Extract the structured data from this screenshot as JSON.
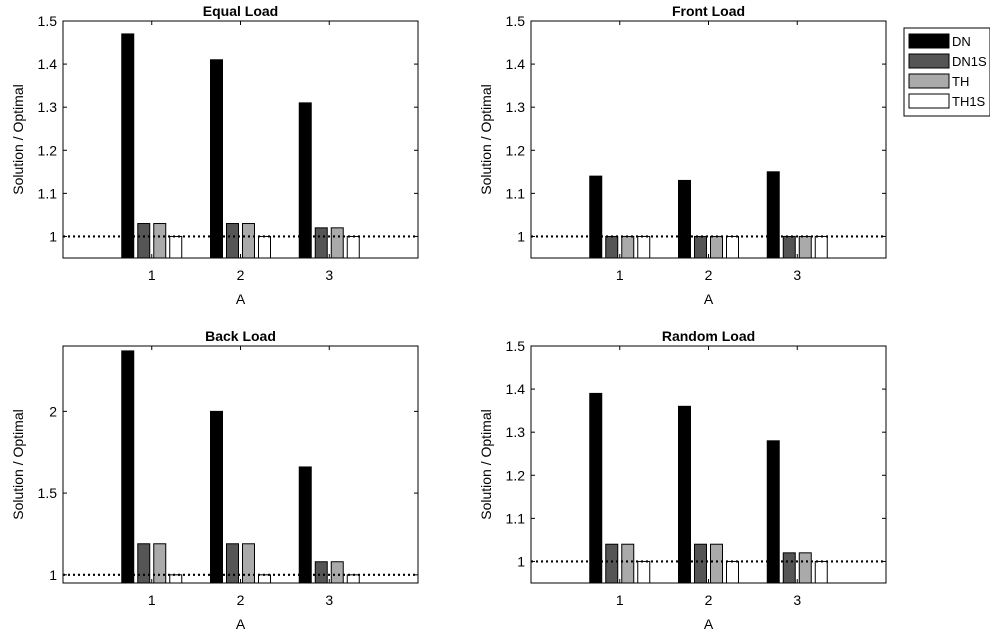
{
  "legend": {
    "entries": [
      "DN",
      "DN1S",
      "TH",
      "TH1S"
    ],
    "placement": "top-right outside",
    "colors": [
      "#000000",
      "#555555",
      "#aaaaaa",
      "#ffffff"
    ]
  },
  "chart_data": [
    {
      "type": "bar",
      "title": "Equal Load",
      "xlabel": "A",
      "ylabel": "Solution / Optimal",
      "categories": [
        "1",
        "2",
        "3"
      ],
      "ylim": [
        0.95,
        1.5
      ],
      "yticks": [
        1,
        1.1,
        1.2,
        1.3,
        1.4,
        1.5
      ],
      "ytick_labels": [
        "1",
        "1.1",
        "1.2",
        "1.3",
        "1.4",
        "1.5"
      ],
      "reference_line": 1,
      "series": [
        {
          "name": "DN",
          "values": [
            1.47,
            1.41,
            1.31
          ]
        },
        {
          "name": "DN1S",
          "values": [
            1.03,
            1.03,
            1.02
          ]
        },
        {
          "name": "TH",
          "values": [
            1.03,
            1.03,
            1.02
          ]
        },
        {
          "name": "TH1S",
          "values": [
            1.0,
            1.0,
            1.0
          ]
        }
      ]
    },
    {
      "type": "bar",
      "title": "Front Load",
      "xlabel": "A",
      "ylabel": "Solution / Optimal",
      "categories": [
        "1",
        "2",
        "3"
      ],
      "ylim": [
        0.95,
        1.5
      ],
      "yticks": [
        1,
        1.1,
        1.2,
        1.3,
        1.4,
        1.5
      ],
      "ytick_labels": [
        "1",
        "1.1",
        "1.2",
        "1.3",
        "1.4",
        "1.5"
      ],
      "reference_line": 1,
      "series": [
        {
          "name": "DN",
          "values": [
            1.14,
            1.13,
            1.15
          ]
        },
        {
          "name": "DN1S",
          "values": [
            1.0,
            1.0,
            1.0
          ]
        },
        {
          "name": "TH",
          "values": [
            1.0,
            1.0,
            1.0
          ]
        },
        {
          "name": "TH1S",
          "values": [
            1.0,
            1.0,
            1.0
          ]
        }
      ]
    },
    {
      "type": "bar",
      "title": "Back Load",
      "xlabel": "A",
      "ylabel": "Solution / Optimal",
      "categories": [
        "1",
        "2",
        "3"
      ],
      "ylim": [
        0.95,
        2.4
      ],
      "yticks": [
        1,
        1.5,
        2
      ],
      "ytick_labels": [
        "1",
        "1.5",
        "2"
      ],
      "reference_line": 1,
      "series": [
        {
          "name": "DN",
          "values": [
            2.37,
            2.0,
            1.66
          ]
        },
        {
          "name": "DN1S",
          "values": [
            1.19,
            1.19,
            1.08
          ]
        },
        {
          "name": "TH",
          "values": [
            1.19,
            1.19,
            1.08
          ]
        },
        {
          "name": "TH1S",
          "values": [
            1.0,
            1.0,
            1.0
          ]
        }
      ]
    },
    {
      "type": "bar",
      "title": "Random Load",
      "xlabel": "A",
      "ylabel": "Solution / Optimal",
      "categories": [
        "1",
        "2",
        "3"
      ],
      "ylim": [
        0.95,
        1.5
      ],
      "yticks": [
        1,
        1.1,
        1.2,
        1.3,
        1.4,
        1.5
      ],
      "ytick_labels": [
        "1",
        "1.1",
        "1.2",
        "1.3",
        "1.4",
        "1.5"
      ],
      "reference_line": 1,
      "series": [
        {
          "name": "DN",
          "values": [
            1.39,
            1.36,
            1.28
          ]
        },
        {
          "name": "DN1S",
          "values": [
            1.04,
            1.04,
            1.02
          ]
        },
        {
          "name": "TH",
          "values": [
            1.04,
            1.04,
            1.02
          ]
        },
        {
          "name": "TH1S",
          "values": [
            1.0,
            1.0,
            1.0
          ]
        }
      ]
    }
  ]
}
